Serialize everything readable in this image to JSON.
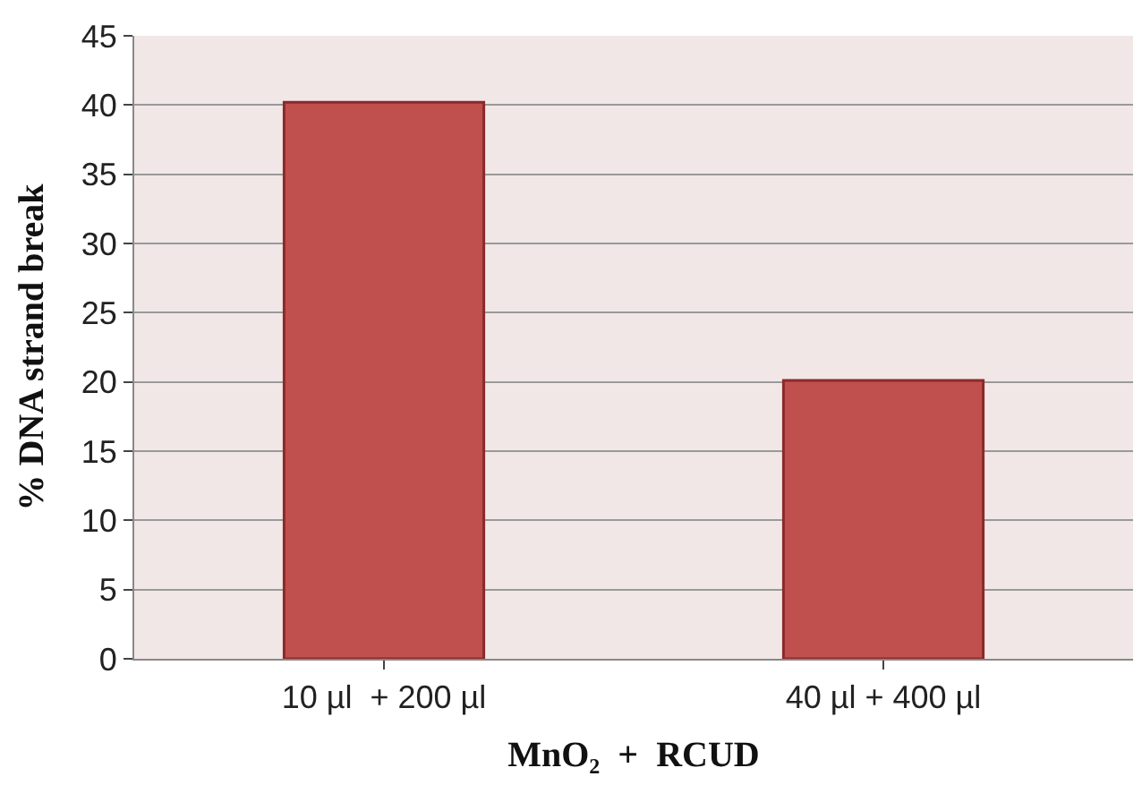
{
  "chart_data": {
    "type": "bar",
    "categories": [
      "10 µl  + 200 µl",
      "40 µl + 400 µl"
    ],
    "values": [
      40.2,
      20.1
    ],
    "color": "#c0504d",
    "xlabel": "MnO₂  +  RCUD",
    "ylabel": "% DNA strand break",
    "ylim": [
      0,
      45
    ],
    "yticks": [
      0,
      5,
      10,
      15,
      20,
      25,
      30,
      35,
      40,
      45
    ],
    "grid": "y"
  }
}
